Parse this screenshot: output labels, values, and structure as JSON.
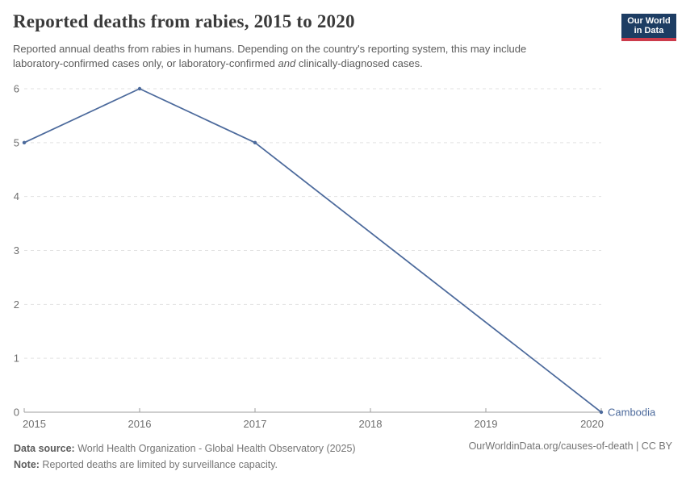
{
  "header": {
    "title": "Reported deaths from rabies, 2015 to 2020",
    "subtitle": {
      "line1": "Reported annual deaths from rabies in humans. Depending on the country's reporting system, this may include",
      "line2_before_italic": "laboratory-confirmed cases only, or laboratory-confirmed ",
      "italic_word": "and",
      "line2_after_italic": " clinically-diagnosed cases."
    },
    "logo": {
      "line1": "Our World",
      "line2": "in Data"
    }
  },
  "chart_data": {
    "type": "line",
    "title": "Reported deaths from rabies, 2015 to 2020",
    "x": [
      2015,
      2016,
      2017,
      2020
    ],
    "series": [
      {
        "name": "Cambodia",
        "values": [
          5,
          6,
          5,
          0
        ],
        "color": "#4c6a9c"
      }
    ],
    "x_ticks": [
      "2015",
      "2016",
      "2017",
      "2018",
      "2019",
      "2020"
    ],
    "y_ticks": [
      0,
      1,
      2,
      3,
      4,
      5,
      6
    ],
    "xlim": [
      2015,
      2020
    ],
    "ylim": [
      0,
      6
    ],
    "xlabel": "",
    "ylabel": "",
    "grid": "horizontal-dashed",
    "legend": "end-of-line-label",
    "end_label": "Cambodia"
  },
  "footer": {
    "source_label": "Data source:",
    "source_text": " World Health Organization - Global Health Observatory (2025)",
    "note_label": "Note:",
    "note_text": " Reported deaths are limited by surveillance capacity.",
    "link_text": "OurWorldinData.org/causes-of-death | CC BY"
  },
  "colors": {
    "line": "#4c6a9c",
    "entity_label": "#4c6a9c",
    "grid": "#e2e2e2",
    "axis": "#9e9e9e",
    "tick_label": "#6f6f6f",
    "logo_bg": "#1d3d63",
    "logo_stripe": "#cc3b4b"
  }
}
